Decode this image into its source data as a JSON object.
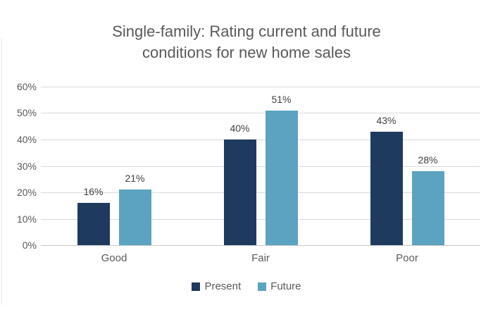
{
  "title": {
    "line1": "Single-family: Rating current and future",
    "line2": "conditions for new home sales"
  },
  "chart_data": {
    "type": "bar",
    "title": "Single-family: Rating current and future conditions for new home sales",
    "categories": [
      "Good",
      "Fair",
      "Poor"
    ],
    "series": [
      {
        "name": "Present",
        "color": "#1f3a5f",
        "values": [
          16,
          40,
          43
        ]
      },
      {
        "name": "Future",
        "color": "#5ba3c0",
        "values": [
          21,
          51,
          28
        ]
      }
    ],
    "data_label_format": "{value}%",
    "y_ticks": [
      "60%",
      "50%",
      "40%",
      "30%",
      "20%",
      "10%",
      "0%"
    ],
    "ylim": [
      0,
      60
    ],
    "grid": true,
    "legend_position": "bottom"
  },
  "colors": {
    "present_bar": "#1f3a5f",
    "future_bar": "#5ba3c0",
    "title_text": "#595959",
    "axis_text": "#595959",
    "data_label_text": "#404040",
    "gridline": "#d9d9d9"
  }
}
